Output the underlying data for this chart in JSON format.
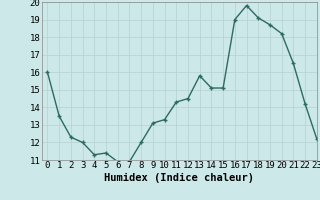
{
  "x": [
    0,
    1,
    2,
    3,
    4,
    5,
    6,
    7,
    8,
    9,
    10,
    11,
    12,
    13,
    14,
    15,
    16,
    17,
    18,
    19,
    20,
    21,
    22,
    23
  ],
  "y": [
    16.0,
    13.5,
    12.3,
    12.0,
    11.3,
    11.4,
    10.9,
    10.9,
    12.0,
    13.1,
    13.3,
    14.3,
    14.5,
    15.8,
    15.1,
    15.1,
    19.0,
    19.8,
    19.1,
    18.7,
    18.2,
    16.5,
    14.2,
    12.2
  ],
  "line_color": "#2d6b62",
  "markersize": 2.5,
  "linewidth": 1.0,
  "bg_color": "#cde8e8",
  "grid_color": "#b8d4d4",
  "xlabel": "Humidex (Indice chaleur)",
  "xlabel_fontsize": 7.5,
  "tick_fontsize": 6.5,
  "ylim": [
    11,
    20
  ],
  "xlim": [
    -0.5,
    23
  ],
  "yticks": [
    11,
    12,
    13,
    14,
    15,
    16,
    17,
    18,
    19,
    20
  ],
  "xticks": [
    0,
    1,
    2,
    3,
    4,
    5,
    6,
    7,
    8,
    9,
    10,
    11,
    12,
    13,
    14,
    15,
    16,
    17,
    18,
    19,
    20,
    21,
    22,
    23
  ]
}
